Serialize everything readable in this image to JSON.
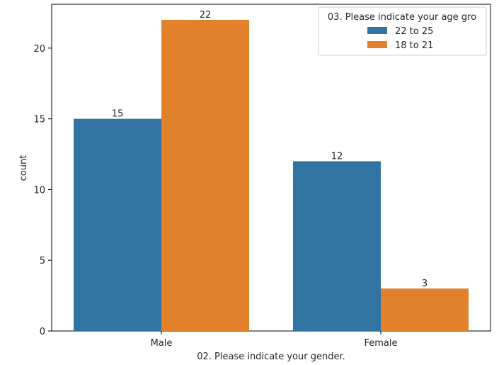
{
  "chart_data": {
    "type": "bar",
    "categories": [
      "Male",
      "Female"
    ],
    "series": [
      {
        "name": "22 to 25",
        "values": [
          15,
          12
        ],
        "color": "#3274a1"
      },
      {
        "name": "18 to 21",
        "values": [
          22,
          3
        ],
        "color": "#e1812c"
      }
    ],
    "title": "",
    "xlabel": "02. Please indicate your gender.",
    "ylabel": "count",
    "ylim": [
      0,
      23.1
    ],
    "yticks": [
      0,
      5,
      10,
      15,
      20
    ],
    "legend": {
      "title": "03. Please indicate your age gro",
      "position": "top-right"
    },
    "data_labels": true,
    "grid": false
  }
}
